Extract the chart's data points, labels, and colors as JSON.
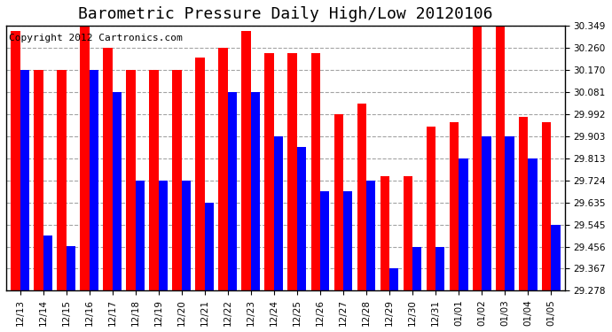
{
  "title": "Barometric Pressure Daily High/Low 20120106",
  "copyright": "Copyright 2012 Cartronics.com",
  "categories": [
    "12/13",
    "12/14",
    "12/15",
    "12/16",
    "12/17",
    "12/18",
    "12/19",
    "12/20",
    "12/21",
    "12/22",
    "12/23",
    "12/24",
    "12/25",
    "12/26",
    "12/27",
    "12/28",
    "12/29",
    "12/30",
    "12/31",
    "01/01",
    "01/02",
    "01/03",
    "01/04",
    "01/05"
  ],
  "highs": [
    30.33,
    30.17,
    30.17,
    30.349,
    30.26,
    30.17,
    30.17,
    30.17,
    30.22,
    30.26,
    30.33,
    30.24,
    30.24,
    30.24,
    29.992,
    30.035,
    29.74,
    29.74,
    29.94,
    29.96,
    30.349,
    30.349,
    29.98,
    29.96
  ],
  "lows": [
    30.17,
    29.5,
    29.46,
    30.17,
    30.081,
    29.724,
    29.724,
    29.724,
    29.635,
    30.081,
    30.081,
    29.903,
    29.86,
    29.68,
    29.68,
    29.724,
    29.367,
    29.456,
    29.456,
    29.813,
    29.903,
    29.903,
    29.813,
    29.545
  ],
  "ymin": 29.278,
  "ymax": 30.349,
  "yticks": [
    29.278,
    29.367,
    29.456,
    29.545,
    29.635,
    29.724,
    29.813,
    29.903,
    29.992,
    30.081,
    30.17,
    30.26,
    30.349
  ],
  "high_color": "#ff0000",
  "low_color": "#0000ff",
  "bg_color": "#ffffff",
  "grid_color": "#999999",
  "title_fontsize": 13,
  "copyright_fontsize": 8
}
